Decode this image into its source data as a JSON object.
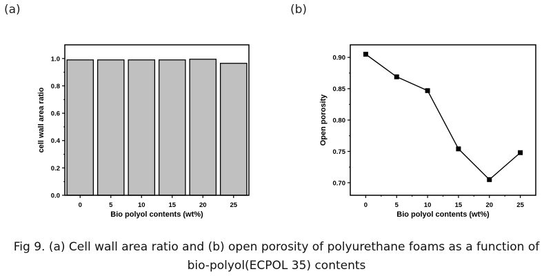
{
  "figure": {
    "panel_a_label": "(a)",
    "panel_b_label": "(b)",
    "caption_line1": "Fig 9. (a) Cell wall area ratio and (b) open porosity of polyurethane foams as a function of",
    "caption_line2": "bio-polyol(ECPOL 35) contents"
  },
  "colors": {
    "bar_fill": "#c0c0c0",
    "stroke": "#000000"
  },
  "chart_data": [
    {
      "type": "bar",
      "categories": [
        "0",
        "5",
        "10",
        "15",
        "20",
        "25"
      ],
      "values": [
        0.99,
        0.99,
        0.99,
        0.99,
        0.995,
        0.965
      ],
      "xlabel": "Bio polyol contents (wt%)",
      "ylabel": "cell wall area ratio",
      "ylim": [
        0,
        1.1
      ],
      "yticks": [
        0.0,
        0.2,
        0.4,
        0.6,
        0.8,
        1.0
      ],
      "ytick_labels": [
        "0.0",
        "0.2",
        "0.4",
        "0.6",
        "0.8",
        "1.0"
      ]
    },
    {
      "type": "line",
      "x": [
        0,
        5,
        10,
        15,
        20,
        25
      ],
      "y": [
        0.905,
        0.869,
        0.847,
        0.754,
        0.705,
        0.748
      ],
      "xlabel": "Bio polyol contents (wt%)",
      "ylabel": "Open porosity",
      "xlim": [
        -2.5,
        27.5
      ],
      "ylim": [
        0.68,
        0.92
      ],
      "xticks": [
        0,
        5,
        10,
        15,
        20,
        25
      ],
      "xtick_labels": [
        "0",
        "5",
        "10",
        "15",
        "20",
        "25"
      ],
      "yticks": [
        0.7,
        0.75,
        0.8,
        0.85,
        0.9
      ],
      "ytick_labels": [
        "0.70",
        "0.75",
        "0.80",
        "0.85",
        "0.90"
      ]
    }
  ]
}
